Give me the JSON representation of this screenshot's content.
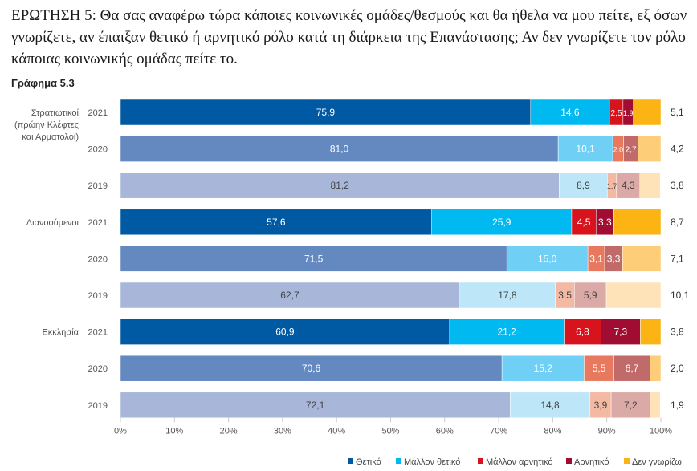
{
  "question": "ΕΡΩΤΗΣΗ 5: Θα σας αναφέρω τώρα κάποιες κοινωνικές ομάδες/θεσμούς και θα ήθελα να μου πείτε, εξ όσων γνωρίζετε, αν έπαιξαν θετικό ή αρνητικό ρόλο κατά τη διάρκεια της Επανάστασης; Αν δεν γνωρίζετε τον ρόλο κάποιας κοινωνικής ομάδας πείτε το.",
  "chart_data": {
    "type": "bar",
    "orientation": "horizontal",
    "stacked": true,
    "title": "Γράφημα 5.3",
    "xlim": [
      0,
      100
    ],
    "x_ticks": [
      "0%",
      "10%",
      "20%",
      "30%",
      "40%",
      "50%",
      "60%",
      "70%",
      "80%",
      "90%",
      "100%"
    ],
    "legend_position": "bottom-right",
    "grid": false,
    "groups": [
      {
        "label": [
          "Στρατιωτικοί",
          "(πρώην Κλέφτες",
          "και Αρματολοί)"
        ],
        "rows": [
          {
            "year": "2021",
            "values": [
              75.9,
              14.6,
              2.5,
              1.9,
              5.1
            ],
            "labels": [
              "75,9",
              "14,6",
              "2,5",
              "1,9",
              "5,1"
            ]
          },
          {
            "year": "2020",
            "values": [
              81.0,
              10.1,
              2.0,
              2.7,
              4.2
            ],
            "labels": [
              "81,0",
              "10,1",
              "2,0",
              "2,7",
              "4,2"
            ]
          },
          {
            "year": "2019",
            "values": [
              81.2,
              8.9,
              1.7,
              4.3,
              3.8
            ],
            "labels": [
              "81,2",
              "8,9",
              "1,7",
              "4,3",
              "3,8"
            ]
          }
        ]
      },
      {
        "label": [
          "Διανοούμενοι"
        ],
        "rows": [
          {
            "year": "2021",
            "values": [
              57.6,
              25.9,
              4.5,
              3.3,
              8.7
            ],
            "labels": [
              "57,6",
              "25,9",
              "4,5",
              "3,3",
              "8,7"
            ]
          },
          {
            "year": "2020",
            "values": [
              71.5,
              15.0,
              3.1,
              3.3,
              7.1
            ],
            "labels": [
              "71,5",
              "15,0",
              "3,1",
              "3,3",
              "7,1"
            ]
          },
          {
            "year": "2019",
            "values": [
              62.7,
              17.8,
              3.5,
              5.9,
              10.1
            ],
            "labels": [
              "62,7",
              "17,8",
              "3,5",
              "5,9",
              "10,1"
            ]
          }
        ]
      },
      {
        "label": [
          "Εκκλησία"
        ],
        "rows": [
          {
            "year": "2021",
            "values": [
              60.9,
              21.2,
              6.8,
              7.3,
              3.8
            ],
            "labels": [
              "60,9",
              "21,2",
              "6,8",
              "7,3",
              "3,8"
            ]
          },
          {
            "year": "2020",
            "values": [
              70.6,
              15.2,
              5.5,
              6.7,
              2.0
            ],
            "labels": [
              "70,6",
              "15,2",
              "5,5",
              "6,7",
              "2,0"
            ]
          },
          {
            "year": "2019",
            "values": [
              72.1,
              14.8,
              3.9,
              7.2,
              1.9
            ],
            "labels": [
              "72,1",
              "14,8",
              "3,9",
              "7,2",
              "1,9"
            ]
          }
        ]
      }
    ],
    "series": [
      {
        "name": "Θετικό",
        "color": "#005aa3"
      },
      {
        "name": "Μάλλον θετικό",
        "color": "#00b9f0"
      },
      {
        "name": "Μάλλον αρνητικό",
        "color": "#d7141e"
      },
      {
        "name": "Αρνητικό",
        "color": "#a00c32"
      },
      {
        "name": "Δεν γνωρίζω",
        "color": "#fbb414"
      }
    ],
    "year_colors": {
      "2021": [
        "#005aa3",
        "#00b9f0",
        "#d7141e",
        "#a00c32",
        "#fbb414"
      ],
      "2020": [
        "#6389c0",
        "#6fcff5",
        "#e8795e",
        "#c06a6a",
        "#fecd77"
      ],
      "2019": [
        "#a8b7d9",
        "#bde7f9",
        "#f3b9a2",
        "#dcaaa6",
        "#fee3b8"
      ]
    }
  }
}
